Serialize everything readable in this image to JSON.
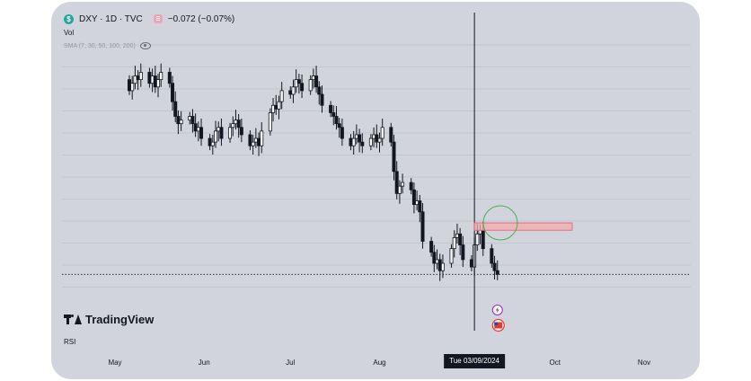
{
  "header": {
    "symbol": "DXY · 1D · TVC",
    "change": "−0.072 (−0.07%)",
    "symbol_icon": "dollar-circle-icon",
    "settings_icon": "indicator-settings-icon"
  },
  "indicators": {
    "volume": "Vol",
    "ma": "SMA (7, 30, 50, 100, 200)",
    "rsi": "RSI"
  },
  "brand": {
    "name": "TradingView"
  },
  "crosshair": {
    "date_label": "Tue 03/09/2024",
    "date": "2024-09-03"
  },
  "colors": {
    "background": "#d1d4dc",
    "candle": "#131722",
    "zone_fill": "#f4a9b0",
    "zone_border": "#e57373",
    "circle": "#4caf50"
  },
  "chart_data": {
    "type": "candlestick",
    "title": "",
    "x_axis_labels": [
      "May",
      "Jun",
      "Jul",
      "Aug",
      "Tue 03/09/2024",
      "Oct",
      "Nov"
    ],
    "x_axis_dates": [
      "2024-05-01",
      "2024-06-01",
      "2024-07-01",
      "2024-08-01",
      "2024-09-03",
      "2024-10-01",
      "2024-11-01"
    ],
    "y_range": [
      99.8,
      106.6
    ],
    "grid": true,
    "series_close": [
      105.6,
      105.8,
      106.0,
      105.9,
      106.1,
      105.8,
      106.0,
      105.7,
      105.9,
      106.1,
      105.8,
      105.3,
      104.9,
      104.7,
      104.8,
      104.9,
      104.7,
      104.5,
      104.6,
      104.3,
      104.1,
      104.2,
      104.5,
      104.6,
      104.3,
      104.6,
      104.7,
      104.8,
      104.6,
      104.4,
      104.1,
      104.2,
      104.3,
      104.1,
      104.5,
      105.0,
      105.2,
      105.1,
      105.3,
      105.6,
      105.5,
      105.7,
      105.9,
      105.8,
      105.6,
      105.9,
      106.0,
      105.7,
      105.5,
      105.2,
      105.0,
      104.9,
      104.7,
      104.6,
      104.3,
      104.1,
      104.3,
      104.4,
      104.2,
      104.1,
      104.3,
      104.4,
      104.2,
      104.3,
      104.6,
      104.2,
      103.4,
      102.8,
      103.0,
      103.1,
      102.9,
      102.5,
      102.6,
      102.3,
      101.5,
      101.2,
      100.9,
      101.0,
      100.7,
      100.9,
      101.3,
      101.6,
      101.7,
      101.4,
      101.0,
      100.8,
      101.4,
      101.7,
      101.8,
      101.3,
      100.9,
      100.7,
      100.6
    ],
    "zones": [
      {
        "type": "resistance",
        "x_start": "2024-09-03",
        "x_end": "2024-10-07",
        "y_low": 101.8,
        "y_high": 102.0
      }
    ],
    "annotations": [
      {
        "type": "circle",
        "x": "2024-09-12",
        "y": 102.0
      }
    ]
  }
}
